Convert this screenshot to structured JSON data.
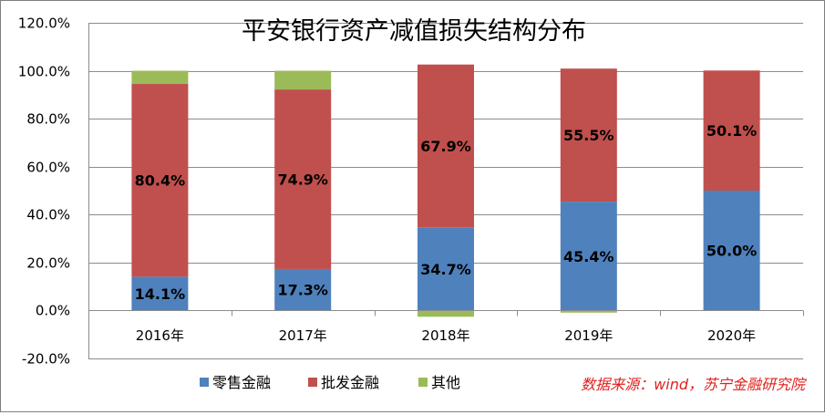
{
  "chart_data": {
    "type": "bar",
    "stacked": true,
    "title": "平安银行资产减值损失结构分布",
    "categories": [
      "2016年",
      "2017年",
      "2018年",
      "2019年",
      "2020年"
    ],
    "series": [
      {
        "name": "零售金融",
        "values": [
          14.1,
          17.3,
          34.7,
          45.4,
          50.0
        ],
        "color": "#4f81bd",
        "labels": [
          "14.1%",
          "17.3%",
          "34.7%",
          "45.4%",
          "50.0%"
        ]
      },
      {
        "name": "批发金融",
        "values": [
          80.4,
          74.9,
          67.9,
          55.5,
          50.1
        ],
        "color": "#c0504d",
        "labels": [
          "80.4%",
          "74.9%",
          "67.9%",
          "55.5%",
          "50.1%"
        ]
      },
      {
        "name": "其他",
        "values": [
          5.5,
          7.8,
          -2.6,
          -0.9,
          -0.1
        ],
        "color": "#9bbb59",
        "labels": []
      }
    ],
    "ylim": [
      -20,
      120
    ],
    "yticks": [
      120,
      100,
      80,
      60,
      40,
      20,
      0,
      -20
    ],
    "ytick_labels": [
      "120.0%",
      "100.0%",
      "80.0%",
      "60.0%",
      "40.0%",
      "20.0%",
      "0.0%",
      "-20.0%"
    ],
    "grid": true,
    "legend_position": "bottom",
    "source_note": "数据来源：wind，苏宁金融研究院"
  }
}
